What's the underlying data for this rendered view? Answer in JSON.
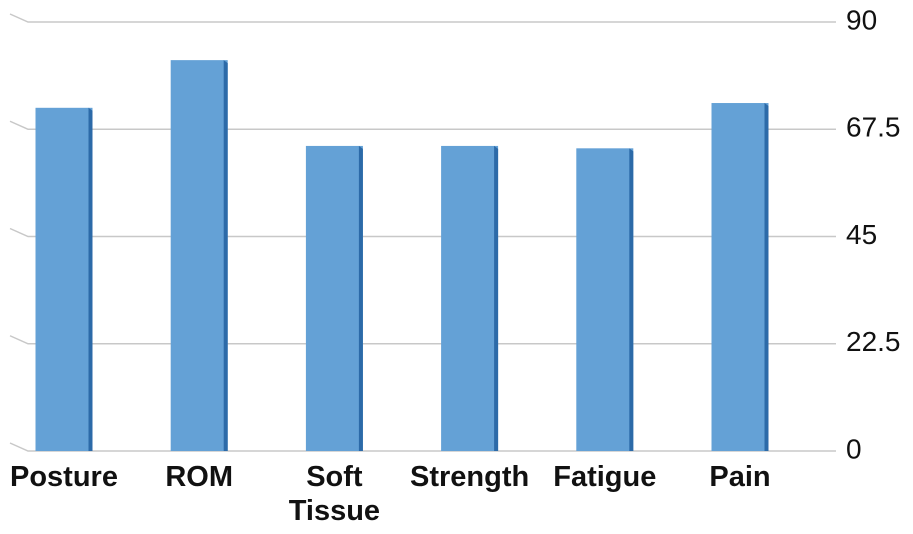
{
  "chart_data": {
    "type": "bar",
    "categories": [
      "Posture",
      "ROM",
      "Soft Tissue",
      "Strength",
      "Fatigue",
      "Pain"
    ],
    "values": [
      72,
      82,
      64,
      64,
      63.5,
      73
    ],
    "color": "#64a1d6",
    "side_color": "#2c6aa8",
    "ylim": [
      0,
      90
    ],
    "yticks": [
      0,
      22.5,
      45,
      67.5,
      90
    ],
    "grid": true,
    "y_axis_side": "right"
  }
}
